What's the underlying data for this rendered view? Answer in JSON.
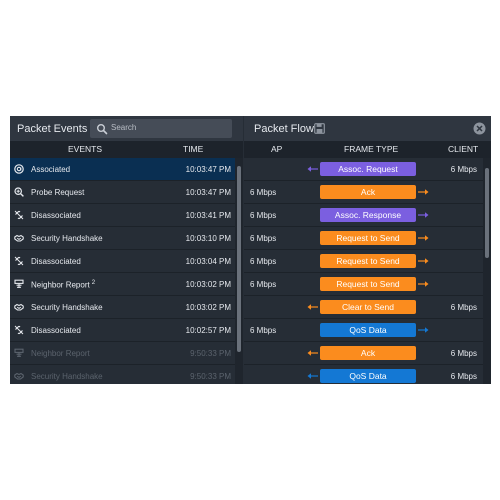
{
  "left_panel": {
    "title": "Packet Events",
    "search_placeholder": "Search",
    "col_events": "EVENTS",
    "col_time": "TIME",
    "rows": [
      {
        "icon": "at-icon",
        "event": "Associated",
        "time": "10:03:47 PM",
        "selected": true
      },
      {
        "icon": "probe-search-icon",
        "event": "Probe Request",
        "time": "10:03:47 PM"
      },
      {
        "icon": "broken-link-icon",
        "event": "Disassociated",
        "time": "10:03:41 PM"
      },
      {
        "icon": "handshake-icon",
        "event": "Security Handshake",
        "time": "10:03:10 PM"
      },
      {
        "icon": "broken-link-icon",
        "event": "Disassociated",
        "time": "10:03:04 PM"
      },
      {
        "icon": "neighbor-report-icon",
        "event": "Neighbor Report",
        "superscript": "2",
        "time": "10:03:02 PM"
      },
      {
        "icon": "handshake-icon",
        "event": "Security Handshake",
        "time": "10:03:02 PM"
      },
      {
        "icon": "broken-link-icon",
        "event": "Disassociated",
        "time": "10:02:57 PM"
      },
      {
        "icon": "neighbor-report-icon",
        "event": "Neighbor Report",
        "time": "9:50:33 PM",
        "dim": true
      },
      {
        "icon": "handshake-icon",
        "event": "Security Handshake",
        "time": "9:50:33 PM",
        "dim": true
      }
    ]
  },
  "right_panel": {
    "title": "Packet Flow",
    "col_ap": "AP",
    "col_frame": "FRAME TYPE",
    "col_client": "CLIENT",
    "colors": {
      "purple": "#7b5fe0",
      "orange": "#fb8c1e",
      "blue": "#1478d4"
    },
    "rows": [
      {
        "ap": "",
        "frame": "Assoc. Request",
        "color": "purple",
        "arrow": "left",
        "client": "6 Mbps"
      },
      {
        "ap": "6 Mbps",
        "frame": "Ack",
        "color": "orange",
        "arrow": "right",
        "client": ""
      },
      {
        "ap": "6 Mbps",
        "frame": "Assoc. Response",
        "color": "purple",
        "arrow": "right",
        "client": ""
      },
      {
        "ap": "6 Mbps",
        "frame": "Request to Send",
        "color": "orange",
        "arrow": "right",
        "client": ""
      },
      {
        "ap": "6 Mbps",
        "frame": "Request to Send",
        "color": "orange",
        "arrow": "right",
        "client": ""
      },
      {
        "ap": "6 Mbps",
        "frame": "Request to Send",
        "color": "orange",
        "arrow": "right",
        "client": ""
      },
      {
        "ap": "",
        "frame": "Clear to Send",
        "color": "orange",
        "arrow": "left",
        "client": "6 Mbps"
      },
      {
        "ap": "6 Mbps",
        "frame": "QoS Data",
        "color": "blue",
        "arrow": "right",
        "client": ""
      },
      {
        "ap": "",
        "frame": "Ack",
        "color": "orange",
        "arrow": "left",
        "client": "6 Mbps"
      },
      {
        "ap": "",
        "frame": "QoS Data",
        "color": "blue",
        "arrow": "left",
        "client": "6 Mbps"
      }
    ]
  }
}
